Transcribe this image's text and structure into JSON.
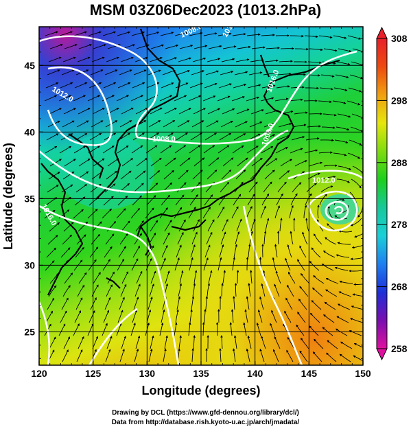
{
  "title": "MSM 03Z06Dec2023 (1013.2hPa)",
  "xlabel": "Longitude (degrees)",
  "ylabel": "Latitude  (degrees)",
  "x_ticks": [
    "120",
    "125",
    "130",
    "135",
    "140",
    "145",
    "150"
  ],
  "y_ticks": [
    "25",
    "30",
    "35",
    "40",
    "45"
  ],
  "colorbar": {
    "ticks": [
      "258",
      "268",
      "278",
      "288",
      "298",
      "308"
    ],
    "min": 258,
    "max": 308,
    "colors": [
      "#e0109e",
      "#7a0fb0",
      "#1d2fd8",
      "#1f7ff0",
      "#1bd0d8",
      "#17c89a",
      "#1ecf1e",
      "#7fdc10",
      "#e6e60c",
      "#f0a010",
      "#ee4a10",
      "#e8202a"
    ]
  },
  "isobar_labels": [
    "1008.0",
    "1008.0",
    "1008.0",
    "1012.0",
    "1012.0",
    "1012.0",
    "1016.0",
    "1016.0"
  ],
  "credit_line1": "Drawing by DCL (https://www.gfd-dennou.org/library/dcl/)",
  "credit_line2": "Data from http://database.rish.kyoto-u.ac.jp/arch/jmadata/",
  "map": {
    "lon_range": [
      120,
      150
    ],
    "lat_range": [
      22.5,
      47.9
    ],
    "field": "temperature (K)",
    "overlays": [
      "streamlines",
      "pressure contours",
      "coastlines"
    ]
  }
}
